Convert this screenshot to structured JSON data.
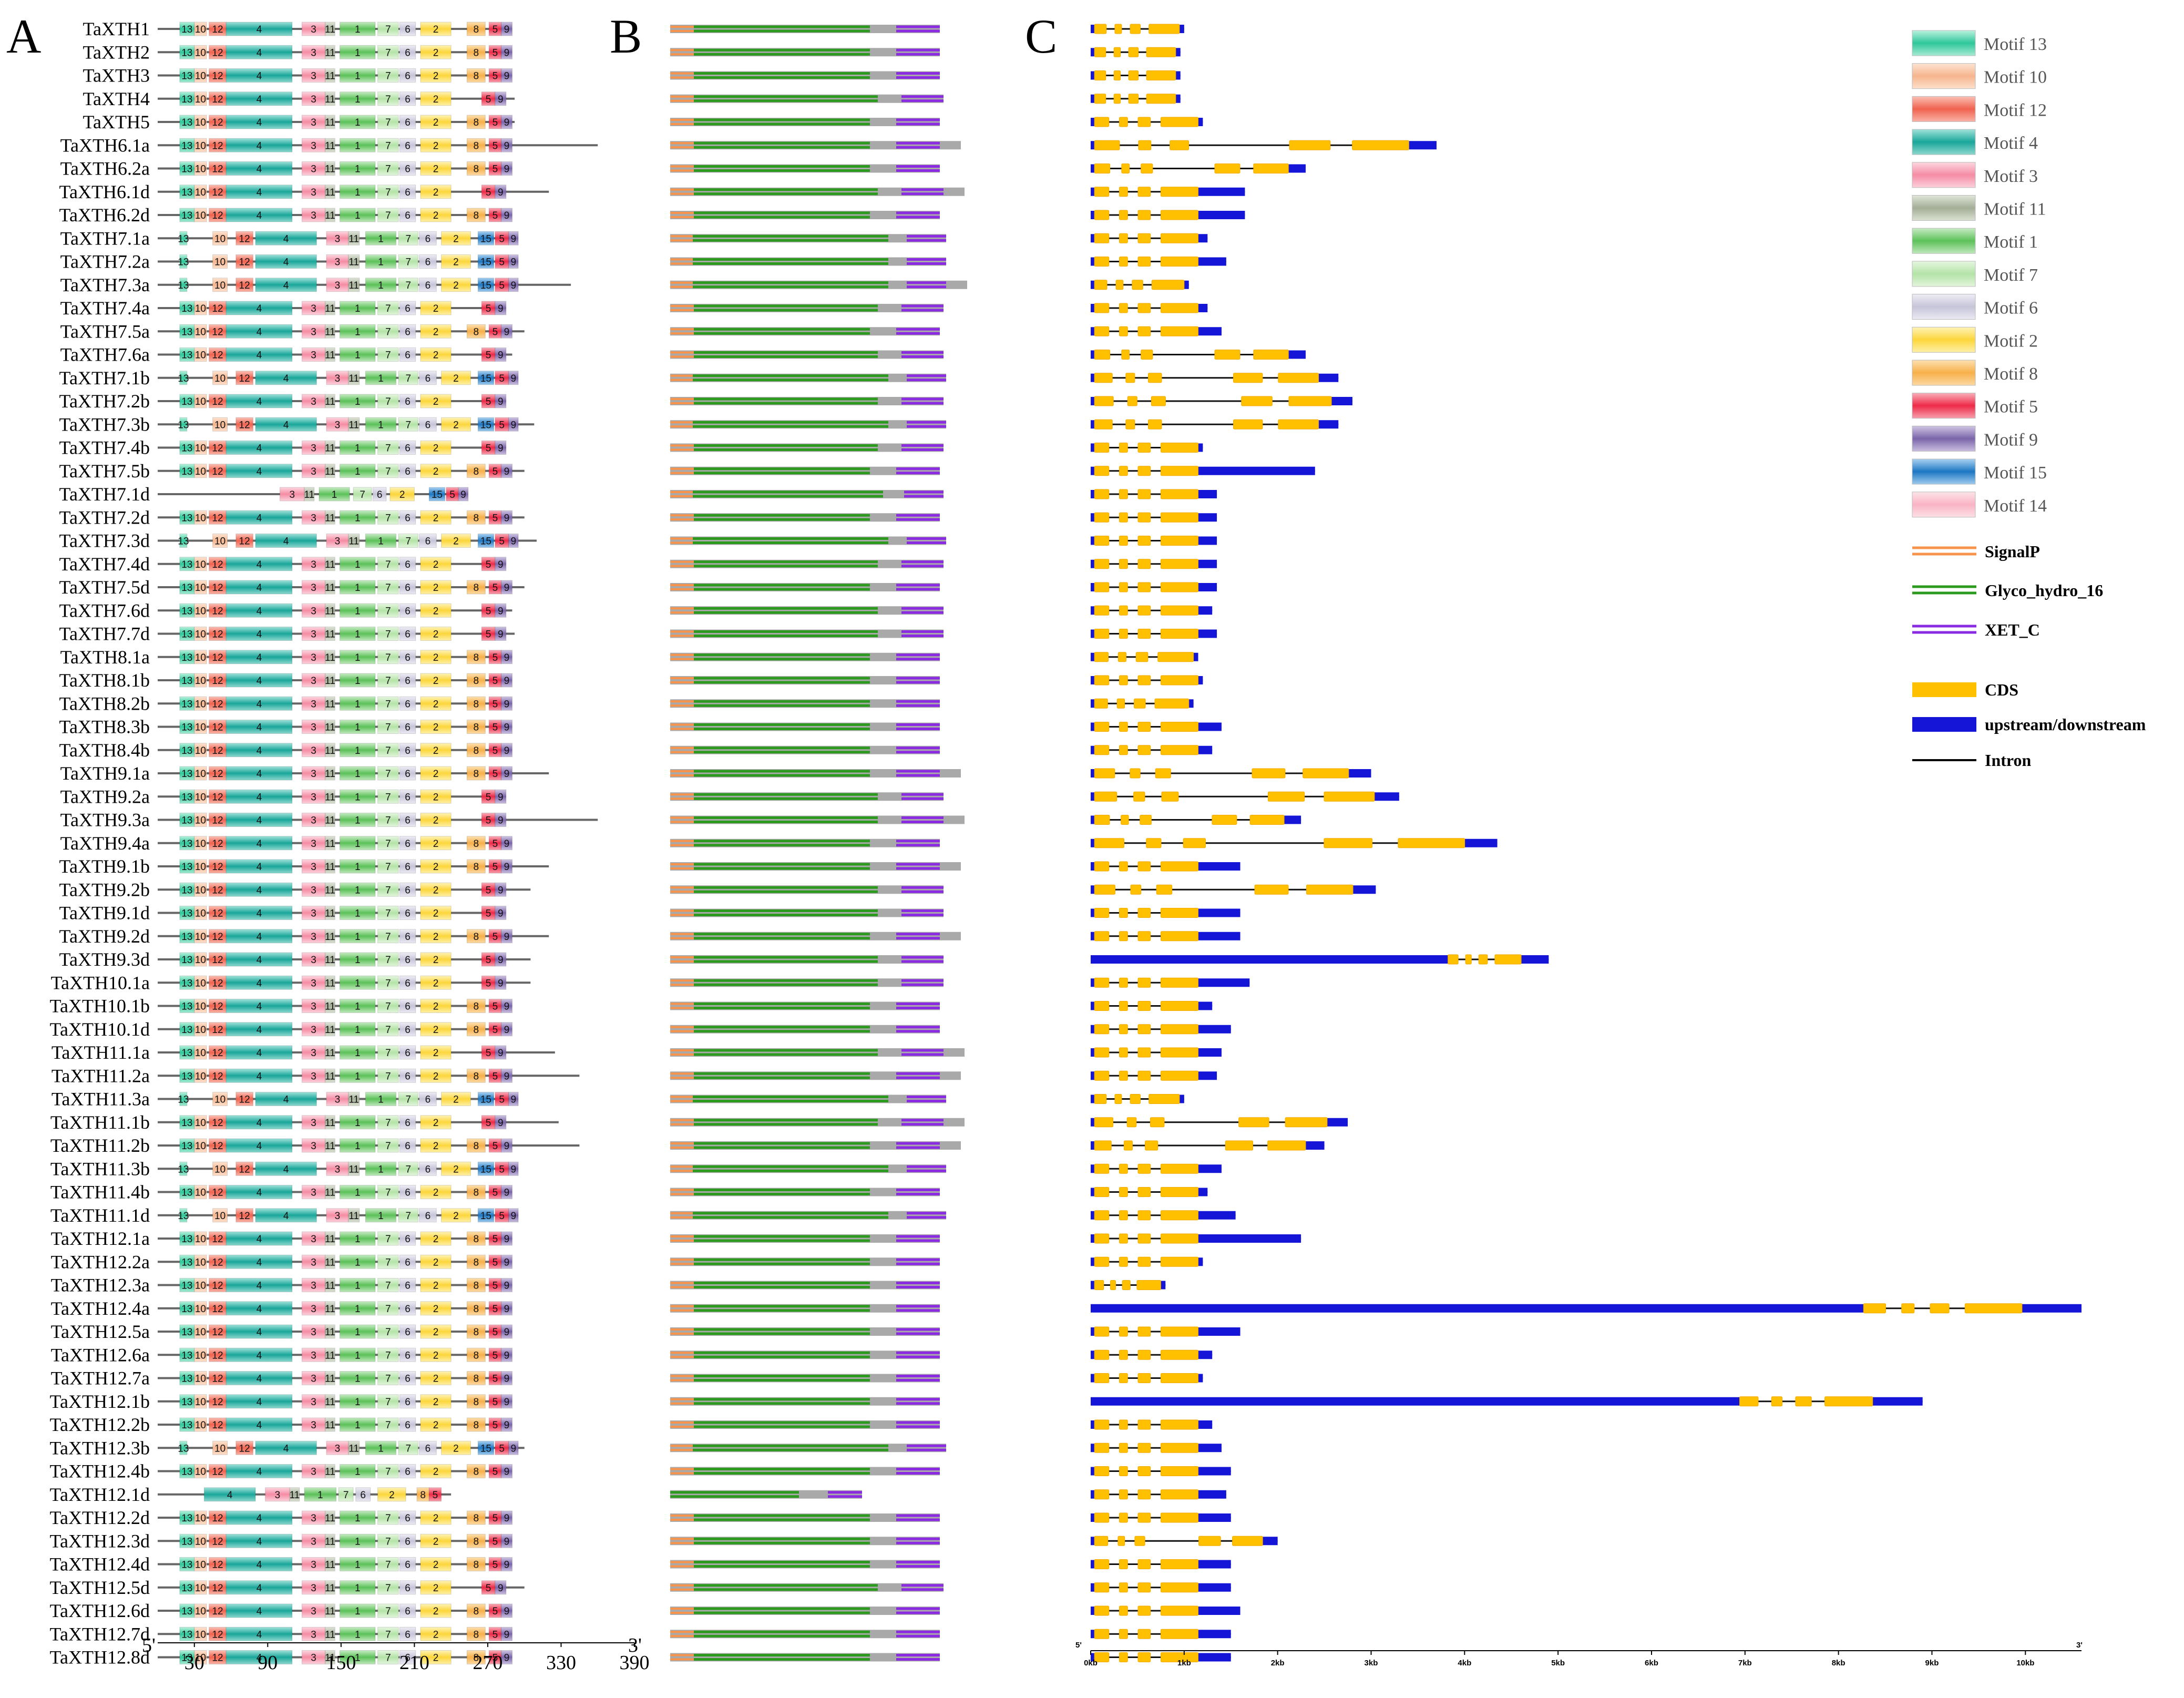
{
  "panels": {
    "a": "A",
    "b": "B",
    "c": "C"
  },
  "motif_axis": {
    "start": "5'",
    "end": "3'",
    "ticks": [
      30,
      90,
      150,
      210,
      270,
      330,
      390
    ],
    "max": 390
  },
  "gene_axis": {
    "start": "5'",
    "end": "3'",
    "ticks": [
      "0kb",
      "1kb",
      "2kb",
      "3kb",
      "4kb",
      "5kb",
      "6kb",
      "7kb",
      "8kb",
      "9kb",
      "10kb"
    ],
    "max_kb": 10.6
  },
  "legend": {
    "motifs": [
      {
        "name": "Motif 13",
        "color": "#2fc79b"
      },
      {
        "name": "Motif 10",
        "color": "#f6b58e"
      },
      {
        "name": "Motif 12",
        "color": "#f0624f"
      },
      {
        "name": "Motif 4",
        "color": "#1aa69a"
      },
      {
        "name": "Motif 3",
        "color": "#f58ca4"
      },
      {
        "name": "Motif 11",
        "color": "#a3ae97"
      },
      {
        "name": "Motif 1",
        "color": "#5cc159"
      },
      {
        "name": "Motif 7",
        "color": "#b4e3a7"
      },
      {
        "name": "Motif 6",
        "color": "#c6c4d8"
      },
      {
        "name": "Motif 2",
        "color": "#fcd63b"
      },
      {
        "name": "Motif 8",
        "color": "#f7b04a"
      },
      {
        "name": "Motif 5",
        "color": "#ee2a47"
      },
      {
        "name": "Motif 9",
        "color": "#7a65aa"
      },
      {
        "name": "Motif 15",
        "color": "#1d77c3"
      },
      {
        "name": "Motif 14",
        "color": "#f9b4c4"
      }
    ],
    "domains": [
      {
        "name": "SignalP",
        "color": "#f7934a"
      },
      {
        "name": "Glyco_hydro_16",
        "color": "#2c9a1e"
      },
      {
        "name": "XET_C",
        "color": "#8a2be2"
      }
    ],
    "gene": [
      {
        "name": "CDS",
        "color": "#ffc000"
      },
      {
        "name": "upstream/downstream",
        "color": "#1515d8"
      },
      {
        "name": "Intron",
        "color": "#000000"
      }
    ]
  },
  "genes": [
    {
      "name": "TaXTH1",
      "len": 290,
      "set": "a",
      "gk": 1.0,
      "gs": "s"
    },
    {
      "name": "TaXTH2",
      "len": 290,
      "set": "a",
      "gk": 0.96,
      "gs": "s"
    },
    {
      "name": "TaXTH3",
      "len": 285,
      "set": "a",
      "gk": 0.96,
      "gs": "s"
    },
    {
      "name": "TaXTH4",
      "len": 292,
      "set": "b",
      "gk": 0.96,
      "gs": "s"
    },
    {
      "name": "TaXTH5",
      "len": 292,
      "set": "a",
      "gk": 1.2,
      "gs": "s"
    },
    {
      "name": "TaXTH6.1a",
      "len": 360,
      "set": "a",
      "gk": 3.7,
      "gs": "l"
    },
    {
      "name": "TaXTH6.2a",
      "len": 290,
      "set": "a",
      "gk": 2.3,
      "gs": "l"
    },
    {
      "name": "TaXTH6.1d",
      "len": 320,
      "set": "b",
      "gk": 1.65,
      "gs": "s"
    },
    {
      "name": "TaXTH6.2d",
      "len": 290,
      "set": "a",
      "gk": 1.65,
      "gs": "s"
    },
    {
      "name": "TaXTH7.1a",
      "len": 292,
      "set": "c",
      "gk": 1.25,
      "gs": "s"
    },
    {
      "name": "TaXTH7.2a",
      "len": 292,
      "set": "c",
      "gk": 1.45,
      "gs": "s"
    },
    {
      "name": "TaXTH7.3a",
      "len": 338,
      "set": "c",
      "gk": 1.05,
      "gs": "s"
    },
    {
      "name": "TaXTH7.4a",
      "len": 285,
      "set": "b",
      "gk": 1.25,
      "gs": "s"
    },
    {
      "name": "TaXTH7.5a",
      "len": 300,
      "set": "a",
      "gk": 1.4,
      "gs": "s"
    },
    {
      "name": "TaXTH7.6a",
      "len": 290,
      "set": "b",
      "gk": 2.3,
      "gs": "l"
    },
    {
      "name": "TaXTH7.1b",
      "len": 292,
      "set": "c",
      "gk": 2.65,
      "gs": "l"
    },
    {
      "name": "TaXTH7.2b",
      "len": 285,
      "set": "b",
      "gk": 2.8,
      "gs": "l"
    },
    {
      "name": "TaXTH7.3b",
      "len": 308,
      "set": "c",
      "gk": 2.65,
      "gs": "l"
    },
    {
      "name": "TaXTH7.4b",
      "len": 285,
      "set": "b",
      "gk": 1.2,
      "gs": "s"
    },
    {
      "name": "TaXTH7.5b",
      "len": 300,
      "set": "a",
      "gk": 2.4,
      "gs": "s"
    },
    {
      "name": "TaXTH7.1d",
      "len": 250,
      "set": "d",
      "gk": 1.35,
      "gs": "s"
    },
    {
      "name": "TaXTH7.2d",
      "len": 300,
      "set": "a",
      "gk": 1.35,
      "gs": "s"
    },
    {
      "name": "TaXTH7.3d",
      "len": 310,
      "set": "c",
      "gk": 1.35,
      "gs": "s"
    },
    {
      "name": "TaXTH7.4d",
      "len": 285,
      "set": "b",
      "gk": 1.35,
      "gs": "s"
    },
    {
      "name": "TaXTH7.5d",
      "len": 300,
      "set": "a",
      "gk": 1.35,
      "gs": "s"
    },
    {
      "name": "TaXTH7.6d",
      "len": 290,
      "set": "b",
      "gk": 1.3,
      "gs": "s"
    },
    {
      "name": "TaXTH7.7d",
      "len": 292,
      "set": "b",
      "gk": 1.35,
      "gs": "s"
    },
    {
      "name": "TaXTH8.1a",
      "len": 290,
      "set": "a",
      "gk": 1.15,
      "gs": "s"
    },
    {
      "name": "TaXTH8.1b",
      "len": 285,
      "set": "a",
      "gk": 1.2,
      "gs": "s"
    },
    {
      "name": "TaXTH8.2b",
      "len": 285,
      "set": "a",
      "gk": 1.1,
      "gs": "s"
    },
    {
      "name": "TaXTH8.3b",
      "len": 290,
      "set": "a",
      "gk": 1.4,
      "gs": "s"
    },
    {
      "name": "TaXTH8.4b",
      "len": 290,
      "set": "a",
      "gk": 1.3,
      "gs": "s"
    },
    {
      "name": "TaXTH9.1a",
      "len": 320,
      "set": "a",
      "gk": 3.0,
      "gs": "l"
    },
    {
      "name": "TaXTH9.2a",
      "len": 285,
      "set": "b",
      "gk": 3.3,
      "gs": "l"
    },
    {
      "name": "TaXTH9.3a",
      "len": 360,
      "set": "b",
      "gk": 2.25,
      "gs": "l"
    },
    {
      "name": "TaXTH9.4a",
      "len": 290,
      "set": "a",
      "gk": 4.35,
      "gs": "l"
    },
    {
      "name": "TaXTH9.1b",
      "len": 320,
      "set": "a",
      "gk": 1.6,
      "gs": "s"
    },
    {
      "name": "TaXTH9.2b",
      "len": 305,
      "set": "b",
      "gk": 3.05,
      "gs": "l"
    },
    {
      "name": "TaXTH9.1d",
      "len": 280,
      "set": "b",
      "gk": 1.6,
      "gs": "s"
    },
    {
      "name": "TaXTH9.2d",
      "len": 320,
      "set": "a",
      "gk": 1.6,
      "gs": "s"
    },
    {
      "name": "TaXTH9.3d",
      "len": 305,
      "set": "b",
      "gk": 4.9,
      "gs": "v"
    },
    {
      "name": "TaXTH10.1a",
      "len": 305,
      "set": "b",
      "gk": 1.7,
      "gs": "s"
    },
    {
      "name": "TaXTH10.1b",
      "len": 290,
      "set": "a",
      "gk": 1.3,
      "gs": "s"
    },
    {
      "name": "TaXTH10.1d",
      "len": 290,
      "set": "a",
      "gk": 1.5,
      "gs": "s"
    },
    {
      "name": "TaXTH11.1a",
      "len": 325,
      "set": "b",
      "gk": 1.4,
      "gs": "s"
    },
    {
      "name": "TaXTH11.2a",
      "len": 345,
      "set": "a",
      "gk": 1.35,
      "gs": "s"
    },
    {
      "name": "TaXTH11.3a",
      "len": 295,
      "set": "c",
      "gk": 1.0,
      "gs": "s"
    },
    {
      "name": "TaXTH11.1b",
      "len": 328,
      "set": "b",
      "gk": 2.75,
      "gs": "l"
    },
    {
      "name": "TaXTH11.2b",
      "len": 345,
      "set": "a",
      "gk": 2.5,
      "gs": "l"
    },
    {
      "name": "TaXTH11.3b",
      "len": 295,
      "set": "c",
      "gk": 1.4,
      "gs": "s"
    },
    {
      "name": "TaXTH11.4b",
      "len": 290,
      "set": "a",
      "gk": 1.25,
      "gs": "s"
    },
    {
      "name": "TaXTH11.1d",
      "len": 295,
      "set": "c",
      "gk": 1.55,
      "gs": "s"
    },
    {
      "name": "TaXTH12.1a",
      "len": 290,
      "set": "a",
      "gk": 2.25,
      "gs": "s"
    },
    {
      "name": "TaXTH12.2a",
      "len": 280,
      "set": "a",
      "gk": 1.2,
      "gs": "s"
    },
    {
      "name": "TaXTH12.3a",
      "len": 290,
      "set": "a",
      "gk": 0.8,
      "gs": "s"
    },
    {
      "name": "TaXTH12.4a",
      "len": 285,
      "set": "a",
      "gk": 10.6,
      "gs": "v"
    },
    {
      "name": "TaXTH12.5a",
      "len": 290,
      "set": "a",
      "gk": 1.6,
      "gs": "s"
    },
    {
      "name": "TaXTH12.6a",
      "len": 285,
      "set": "a",
      "gk": 1.3,
      "gs": "s"
    },
    {
      "name": "TaXTH12.7a",
      "len": 285,
      "set": "a",
      "gk": 1.2,
      "gs": "s"
    },
    {
      "name": "TaXTH12.1b",
      "len": 290,
      "set": "a",
      "gk": 8.9,
      "gs": "v"
    },
    {
      "name": "TaXTH12.2b",
      "len": 290,
      "set": "a",
      "gk": 1.3,
      "gs": "s"
    },
    {
      "name": "TaXTH12.3b",
      "len": 300,
      "set": "c",
      "gk": 1.4,
      "gs": "s"
    },
    {
      "name": "TaXTH12.4b",
      "len": 285,
      "set": "a",
      "gk": 1.5,
      "gs": "s"
    },
    {
      "name": "TaXTH12.1d",
      "len": 240,
      "set": "e",
      "gk": 1.45,
      "gs": "s"
    },
    {
      "name": "TaXTH12.2d",
      "len": 285,
      "set": "a",
      "gk": 1.5,
      "gs": "s"
    },
    {
      "name": "TaXTH12.3d",
      "len": 290,
      "set": "a",
      "gk": 2.0,
      "gs": "l"
    },
    {
      "name": "TaXTH12.4d",
      "len": 285,
      "set": "a",
      "gk": 1.5,
      "gs": "s"
    },
    {
      "name": "TaXTH12.5d",
      "len": 300,
      "set": "b",
      "gk": 1.5,
      "gs": "s"
    },
    {
      "name": "TaXTH12.6d",
      "len": 290,
      "set": "a",
      "gk": 1.6,
      "gs": "s"
    },
    {
      "name": "TaXTH12.7d",
      "len": 290,
      "set": "a",
      "gk": 1.5,
      "gs": "s"
    },
    {
      "name": "TaXTH12.8d",
      "len": 290,
      "set": "a",
      "gk": 1.5,
      "gs": "s"
    }
  ]
}
